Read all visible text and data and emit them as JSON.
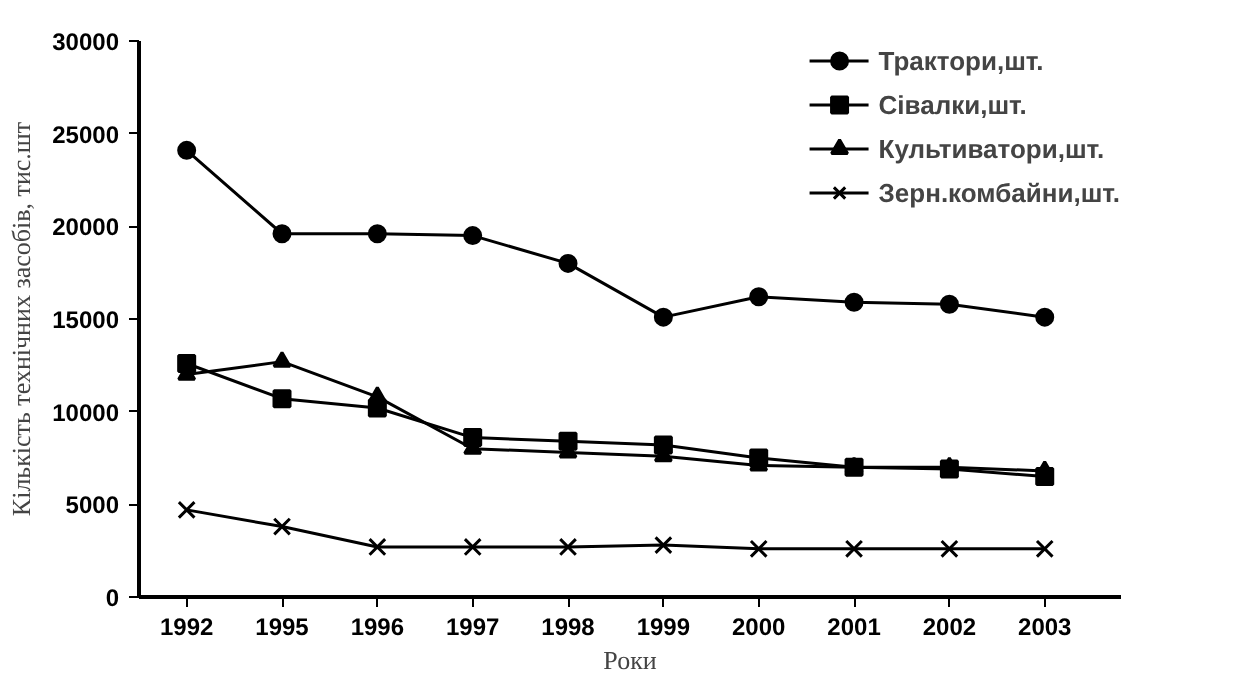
{
  "chart_data": {
    "type": "line",
    "xlabel": "Роки",
    "ylabel": "Кількість технічних засобів, тис.шт",
    "categories": [
      "1992",
      "1995",
      "1996",
      "1997",
      "1998",
      "1999",
      "2000",
      "2001",
      "2002",
      "2003"
    ],
    "ylim": [
      0,
      30000
    ],
    "yticks": [
      0,
      5000,
      10000,
      15000,
      20000,
      25000,
      30000
    ],
    "grid": false,
    "legend": "top right",
    "line_style": "solid",
    "series": [
      {
        "name": "Трактори,шт.",
        "color": "#000000",
        "marker": "circle",
        "values": [
          24100,
          19600,
          19600,
          19500,
          18000,
          15100,
          16200,
          15900,
          15800,
          15100
        ]
      },
      {
        "name": "Сівалки,шт.",
        "color": "#000000",
        "marker": "square",
        "values": [
          12600,
          10700,
          10200,
          8600,
          8400,
          8200,
          7500,
          7000,
          6900,
          6500
        ]
      },
      {
        "name": "Культиватори,шт.",
        "color": "#000000",
        "marker": "triangle",
        "values": [
          12000,
          12700,
          10800,
          8000,
          7800,
          7600,
          7100,
          7000,
          7000,
          6800
        ]
      },
      {
        "name": "Зерн.комбайни,шт.",
        "color": "#000000",
        "marker": "cross",
        "values": [
          4700,
          3800,
          2700,
          2700,
          2700,
          2800,
          2600,
          2600,
          2600,
          2600
        ]
      }
    ]
  }
}
